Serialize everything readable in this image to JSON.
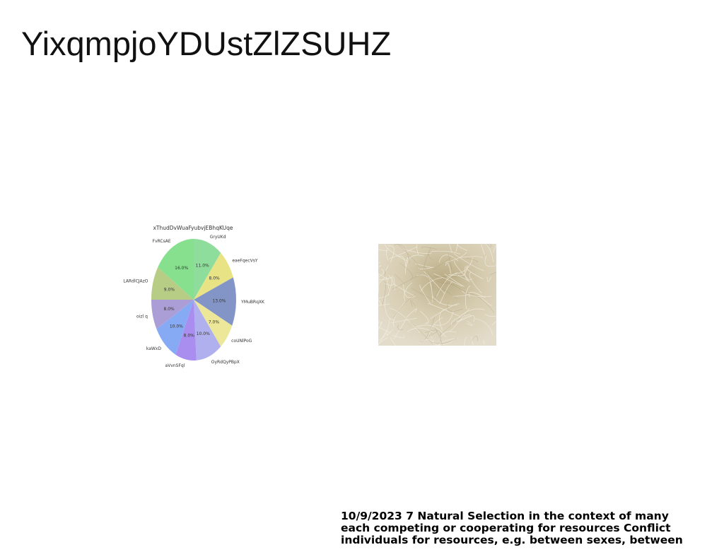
{
  "slide": {
    "title": "YixqmpjoYDUstZlZSUHZ",
    "footer_lines": [
      "10/9/2023 7 Natural Selection in the context of many",
      "each competing or cooperating for resources Conflict",
      "individuals for resources, e.g. between sexes, between"
    ]
  },
  "chart_data": {
    "type": "pie",
    "title": "xThudDvWuaFyubvjEBhqKUqe",
    "categories": [
      "GryUKd",
      "eaeFqecVsY",
      "YMuBRqXK",
      "coUNlPoG",
      "OyRdQyPBpX",
      "aVvnSFql",
      "kaWxD",
      "oizl q",
      "LARdlCJAzO",
      "FvRCsAE"
    ],
    "values": [
      11.0,
      8.0,
      13.0,
      7.0,
      10.0,
      8.0,
      10.0,
      8.0,
      9.0,
      16.0
    ],
    "value_labels": [
      "11.0%",
      "8.0%",
      "13.0%",
      "7.0%",
      "10.0%",
      "8.0%",
      "10.0%",
      "8.0%",
      "9.0%",
      "16.0%"
    ],
    "colors": [
      "#8fdd9c",
      "#e8e486",
      "#8395c6",
      "#ece799",
      "#b0b0ee",
      "#a98ef0",
      "#86aaf3",
      "#ab9ed6",
      "#b7cd85",
      "#87e08d"
    ],
    "start_angle_deg": 90,
    "direction": "clockwise"
  }
}
